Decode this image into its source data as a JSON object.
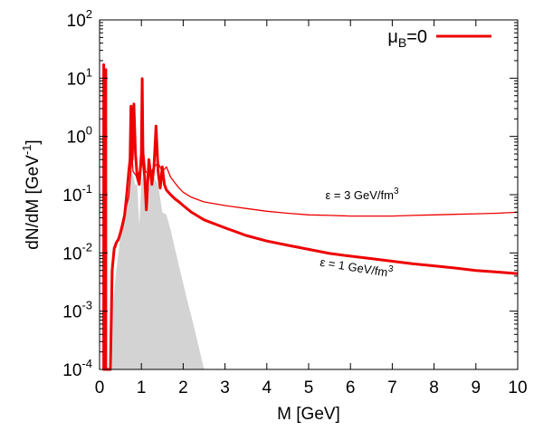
{
  "chart_data": {
    "type": "line",
    "xlabel": "M [GeV]",
    "ylabel_main": "dN/dM [GeV",
    "ylabel_sup": "-1",
    "ylabel_close": "]",
    "xlim": [
      0,
      10
    ],
    "ylim": [
      0.0001,
      100
    ],
    "yscale": "log",
    "x_ticks": [
      "0",
      "1",
      "2",
      "3",
      "4",
      "5",
      "6",
      "7",
      "8",
      "9",
      "10"
    ],
    "y_ticks": [
      {
        "base": "10",
        "exp": "-4"
      },
      {
        "base": "10",
        "exp": "-3"
      },
      {
        "base": "10",
        "exp": "-2"
      },
      {
        "base": "10",
        "exp": "-1"
      },
      {
        "base": "10",
        "exp": "0"
      },
      {
        "base": "10",
        "exp": "1"
      },
      {
        "base": "10",
        "exp": "2"
      }
    ],
    "legend": {
      "mu": "μ",
      "sub": "B",
      "rest": "=0",
      "color": "#ee0000",
      "position": "top-right"
    },
    "annotations": [
      {
        "main": "ε = 3 GeV/fm",
        "sup": "3"
      },
      {
        "main": "ε = 1 GeV/fm",
        "sup": "3"
      }
    ],
    "series": [
      {
        "label": "ε = 3 GeV/fm3",
        "color": "#ee0000",
        "width": 1.3,
        "x": [
          0.38,
          0.5,
          0.6,
          0.7,
          0.78,
          0.8,
          0.9,
          1.0,
          1.02,
          1.1,
          1.2,
          1.3,
          1.4,
          1.5,
          1.6,
          1.7,
          1.8,
          1.9,
          2.0,
          2.2,
          2.5,
          3.0,
          3.5,
          4.0,
          4.5,
          5.0,
          5.5,
          6.0,
          6.5,
          7.0,
          7.5,
          8.0,
          8.5,
          9.0,
          9.5,
          10.0
        ],
        "y": [
          0.012,
          0.025,
          0.05,
          0.09,
          0.45,
          0.25,
          0.2,
          0.3,
          1.0,
          0.25,
          0.22,
          0.3,
          0.35,
          0.25,
          0.3,
          0.2,
          0.16,
          0.13,
          0.11,
          0.09,
          0.075,
          0.065,
          0.058,
          0.052,
          0.048,
          0.045,
          0.044,
          0.043,
          0.043,
          0.043,
          0.044,
          0.045,
          0.046,
          0.047,
          0.048,
          0.05
        ]
      },
      {
        "label": "ε = 1 GeV/fm3",
        "color": "#ee0000",
        "width": 3,
        "x": [
          0.1,
          0.1,
          0.1,
          0.15,
          0.15,
          0.15,
          0.26,
          0.3,
          0.35,
          0.4,
          0.45,
          0.5,
          0.55,
          0.6,
          0.65,
          0.7,
          0.73,
          0.75,
          0.78,
          0.8,
          0.82,
          0.86,
          0.9,
          0.95,
          1.0,
          1.02,
          1.04,
          1.08,
          1.12,
          1.18,
          1.25,
          1.3,
          1.35,
          1.4,
          1.45,
          1.5,
          1.55,
          1.6,
          1.7,
          1.8,
          1.9,
          2.0,
          2.2,
          2.5,
          3.0,
          3.5,
          4.0,
          4.5,
          5.0,
          5.5,
          6.0,
          6.5,
          7.0,
          7.5,
          8.0,
          8.5,
          9.0,
          9.5,
          10.0
        ],
        "y": [
          0.0001,
          17,
          0.0001,
          0.0001,
          14,
          0.0001,
          0.0001,
          0.005,
          0.012,
          0.015,
          0.017,
          0.022,
          0.03,
          0.045,
          0.1,
          0.25,
          0.4,
          3.3,
          0.4,
          1.0,
          3.6,
          0.5,
          0.2,
          0.15,
          0.5,
          9.8,
          0.4,
          0.2,
          0.055,
          0.4,
          0.15,
          0.3,
          1.5,
          0.25,
          0.13,
          0.3,
          0.15,
          0.12,
          0.1,
          0.085,
          0.075,
          0.065,
          0.05,
          0.037,
          0.027,
          0.02,
          0.016,
          0.0135,
          0.0115,
          0.0098,
          0.0088,
          0.008,
          0.0072,
          0.0065,
          0.006,
          0.0055,
          0.005,
          0.0047,
          0.0044
        ]
      }
    ],
    "background_band": {
      "color": "#d3d3d3",
      "x": [
        0.3,
        0.4,
        0.5,
        0.6,
        0.7,
        0.78,
        0.85,
        0.9,
        0.95,
        1.0,
        1.05,
        1.1,
        1.2,
        1.3,
        1.4,
        1.5,
        1.6,
        1.7,
        1.8,
        1.9,
        2.0,
        2.1,
        2.2,
        2.3,
        2.4,
        2.5
      ],
      "y": [
        0.001,
        0.005,
        0.02,
        0.04,
        0.12,
        0.25,
        0.15,
        0.15,
        0.03,
        0.15,
        0.25,
        0.08,
        0.15,
        0.2,
        0.15,
        0.05,
        0.045,
        0.025,
        0.012,
        0.006,
        0.003,
        0.0015,
        0.0008,
        0.0004,
        0.0002,
        0.0001
      ]
    }
  }
}
